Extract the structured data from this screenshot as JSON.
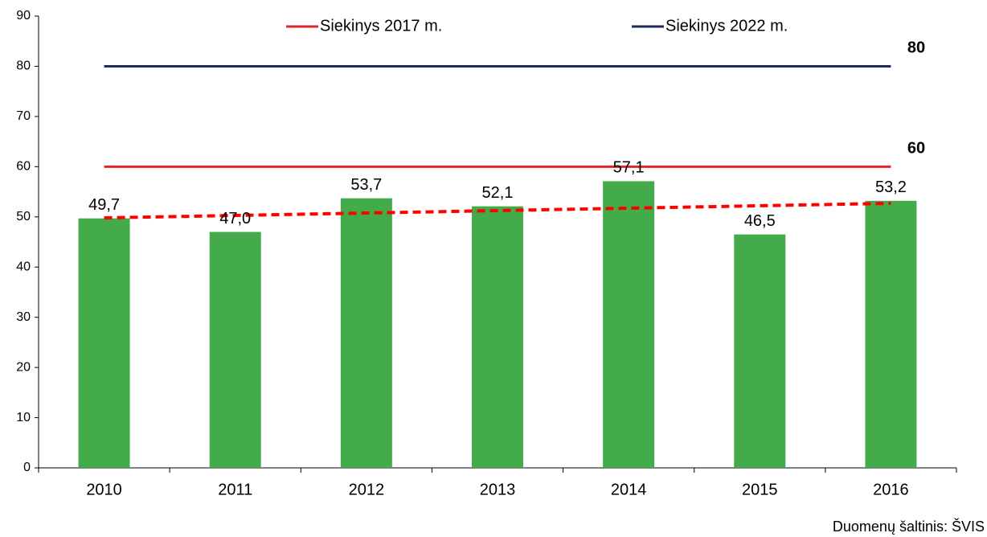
{
  "chart_data": {
    "type": "bar",
    "categories": [
      "2010",
      "2011",
      "2012",
      "2013",
      "2014",
      "2015",
      "2016"
    ],
    "values": [
      49.7,
      47.0,
      53.7,
      52.1,
      57.1,
      46.5,
      53.2
    ],
    "value_labels": [
      "49,7",
      "47,0",
      "53,7",
      "52,1",
      "57,1",
      "46,5",
      "53,2"
    ],
    "color": "#43ab4a",
    "series": [
      {
        "name": "Siekinys 2017 m.",
        "type": "line",
        "color": "#e0252b",
        "values": [
          60,
          60,
          60,
          60,
          60,
          60,
          60
        ]
      },
      {
        "name": "Siekinys 2022 m.",
        "type": "line",
        "color": "#1f2a5c",
        "values": [
          80,
          80,
          80,
          80,
          80,
          80,
          80
        ]
      }
    ],
    "trendline": {
      "color": "#ff0000",
      "start": 49.8,
      "end": 52.7
    },
    "ylim": [
      0,
      90
    ],
    "yticks": [
      0,
      10,
      20,
      30,
      40,
      50,
      60,
      70,
      80,
      90
    ],
    "source": "Duomenų šaltinis: ŠVIS"
  }
}
